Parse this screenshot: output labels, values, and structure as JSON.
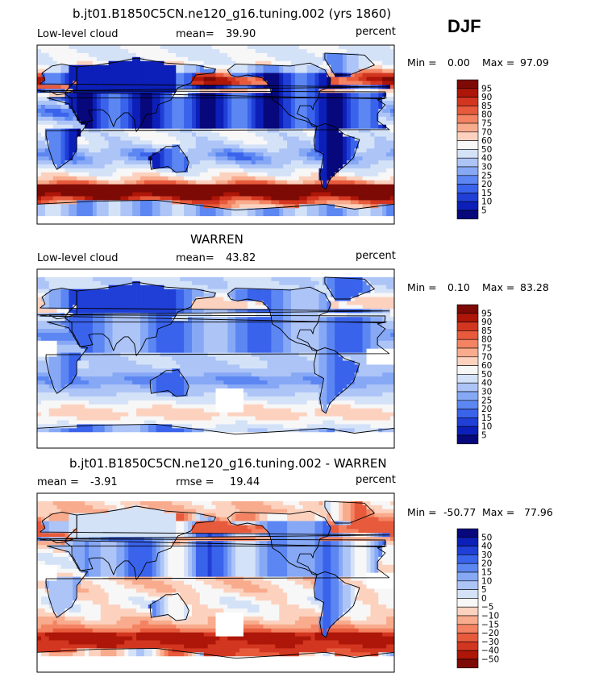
{
  "season": "DJF",
  "chart_data": [
    {
      "type": "heatmap",
      "title": "b.jt01.B1850C5CN.ne120_g16.tuning.002 (yrs 1860)",
      "left_label": "Low-level cloud",
      "mean_label": "mean=",
      "mean_value": "39.90",
      "units": "percent",
      "min_label": "Min =",
      "min_value": "0.00",
      "max_label": "Max =",
      "max_value": "97.09",
      "colorbar": {
        "levels": [
          "5",
          "10",
          "15",
          "20",
          "25",
          "30",
          "40",
          "50",
          "60",
          "70",
          "75",
          "80",
          "85",
          "90",
          "95"
        ],
        "colors": [
          "#07087c",
          "#0c1fb8",
          "#1f3fd6",
          "#3a63ec",
          "#5c86f2",
          "#86a8f5",
          "#adc4f7",
          "#d4e2f8",
          "#f7f7f7",
          "#fcd2bf",
          "#f8ab8d",
          "#f38362",
          "#e75a3c",
          "#d33620",
          "#ad1608",
          "#7d0a05"
        ],
        "selector": "#cb0"
      },
      "field": "model"
    },
    {
      "type": "heatmap",
      "title": "WARREN",
      "left_label": "Low-level cloud",
      "mean_label": "mean=",
      "mean_value": "43.82",
      "units": "percent",
      "min_label": "Min =",
      "min_value": "0.10",
      "max_label": "Max =",
      "max_value": "83.28",
      "colorbar": {
        "levels": [
          "5",
          "10",
          "15",
          "20",
          "25",
          "30",
          "40",
          "50",
          "60",
          "70",
          "75",
          "80",
          "85",
          "90",
          "95"
        ],
        "colors": [
          "#07087c",
          "#0c1fb8",
          "#1f3fd6",
          "#3a63ec",
          "#5c86f2",
          "#86a8f5",
          "#adc4f7",
          "#d4e2f8",
          "#f7f7f7",
          "#fcd2bf",
          "#f8ab8d",
          "#f38362",
          "#e75a3c",
          "#d33620",
          "#ad1608",
          "#7d0a05"
        ],
        "selector": "#cb1"
      },
      "field": "obs"
    },
    {
      "type": "heatmap",
      "title": "b.jt01.B1850C5CN.ne120_g16.tuning.002 - WARREN",
      "left_label": "mean =",
      "mean_label": "rmse =",
      "mean_value_left": "-3.91",
      "mean_value": "19.44",
      "units": "percent",
      "min_label": "Min =",
      "min_value": "-50.77",
      "max_label": "Max =",
      "max_value": "77.96",
      "colorbar": {
        "levels": [
          "50",
          "40",
          "30",
          "20",
          "15",
          "10",
          "5",
          "0",
          "−5",
          "−10",
          "−15",
          "−20",
          "−30",
          "−40",
          "−50"
        ],
        "colors": [
          "#7d0a05",
          "#ad1608",
          "#d33620",
          "#e75a3c",
          "#f38362",
          "#f8ab8d",
          "#fcd2bf",
          "#f7f7f7",
          "#d4e2f8",
          "#adc4f7",
          "#86a8f5",
          "#5c86f2",
          "#3a63ec",
          "#1f3fd6",
          "#0c1fb8",
          "#07087c"
        ],
        "selector": "#cb2",
        "reversed": true
      },
      "field": "diff"
    }
  ]
}
